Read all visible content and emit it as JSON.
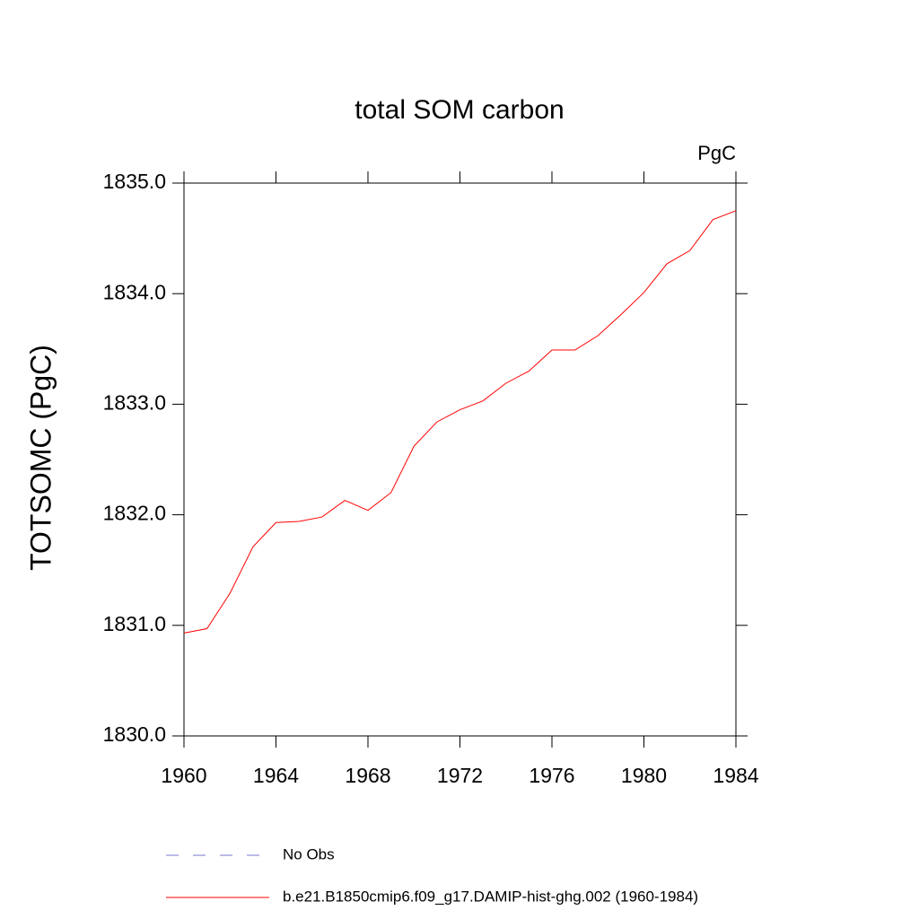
{
  "chart_data": {
    "type": "line",
    "title": "total SOM carbon",
    "units": "PgC",
    "y_label": "TOTSOMC  (PgC)",
    "x": [
      1960,
      1961,
      1962,
      1963,
      1964,
      1965,
      1966,
      1967,
      1968,
      1969,
      1970,
      1971,
      1972,
      1973,
      1974,
      1975,
      1976,
      1977,
      1978,
      1979,
      1980,
      1981,
      1982,
      1983,
      1984
    ],
    "series": [
      {
        "name": "b.e21.B1850cmip6.f09_g17.DAMIP-hist-ghg.002 (1960-1984)",
        "color": "#ff0000",
        "values": [
          1830.93,
          1830.97,
          1831.29,
          1831.71,
          1831.93,
          1831.94,
          1831.98,
          1832.13,
          1832.04,
          1832.2,
          1832.62,
          1832.84,
          1832.95,
          1833.03,
          1833.19,
          1833.3,
          1833.49,
          1833.49,
          1833.62,
          1833.81,
          1834.01,
          1834.27,
          1834.39,
          1834.67,
          1834.75
        ]
      }
    ],
    "reference": {
      "name": "No Obs",
      "color": "#7777cc",
      "style": "dashed"
    },
    "xlim": [
      1960,
      1984
    ],
    "xticks": [
      1960,
      1964,
      1968,
      1972,
      1976,
      1980,
      1984
    ],
    "ylim": [
      1830,
      1835
    ],
    "yticks": [
      {
        "value": 1830,
        "label": "1830.0"
      },
      {
        "value": 1831,
        "label": "1831.0"
      },
      {
        "value": 1832,
        "label": "1832.0"
      },
      {
        "value": 1833,
        "label": "1833.0"
      },
      {
        "value": 1834,
        "label": "1834.0"
      },
      {
        "value": 1835,
        "label": "1835.0"
      }
    ],
    "grid": false
  }
}
